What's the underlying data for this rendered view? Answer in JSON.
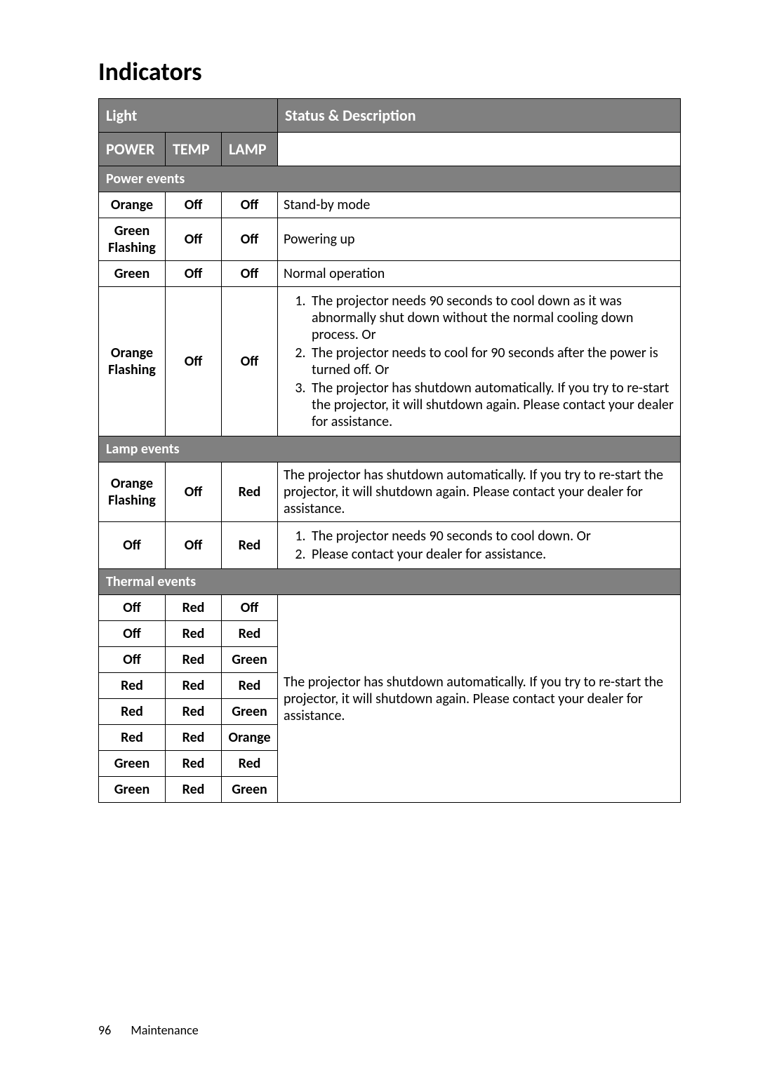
{
  "title": "Indicators",
  "columns": {
    "light": "Light",
    "status_desc": "Status & Description",
    "power": "POWER",
    "temp": "TEMP",
    "lamp": "LAMP"
  },
  "sections": {
    "power_events": "Power events",
    "lamp_events": "Lamp events",
    "thermal_events": "Thermal events"
  },
  "power_rows": [
    {
      "power": "Orange",
      "temp": "Off",
      "lamp": "Off",
      "desc": "Stand-by mode"
    },
    {
      "power": "Green Flashing",
      "temp": "Off",
      "lamp": "Off",
      "desc": "Powering up"
    },
    {
      "power": "Green",
      "temp": "Off",
      "lamp": "Off",
      "desc": "Normal operation"
    },
    {
      "power": "Orange Flashing",
      "temp": "Off",
      "lamp": "Off",
      "list": [
        "The projector needs 90 seconds to cool down as it was abnormally shut down without the normal cooling down process. Or",
        "The projector needs to cool for 90 seconds after the power is turned off. Or",
        "The projector has shutdown automatically. If you try to re-start the projector, it will shutdown again. Please contact your dealer for assistance."
      ]
    }
  ],
  "lamp_rows": [
    {
      "power": "Orange Flashing",
      "temp": "Off",
      "lamp": "Red",
      "desc": "The projector has shutdown automatically. If you try to re-start the projector, it will shutdown again. Please contact your dealer for assistance."
    },
    {
      "power": "Off",
      "temp": "Off",
      "lamp": "Red",
      "list": [
        "The projector needs 90 seconds to cool down. Or",
        "Please contact your dealer for assistance."
      ]
    }
  ],
  "thermal_rows": [
    {
      "power": "Off",
      "temp": "Red",
      "lamp": "Off"
    },
    {
      "power": "Off",
      "temp": "Red",
      "lamp": "Red"
    },
    {
      "power": "Off",
      "temp": "Red",
      "lamp": "Green"
    },
    {
      "power": "Red",
      "temp": "Red",
      "lamp": "Red"
    },
    {
      "power": "Red",
      "temp": "Red",
      "lamp": "Green"
    },
    {
      "power": "Red",
      "temp": "Red",
      "lamp": "Orange"
    },
    {
      "power": "Green",
      "temp": "Red",
      "lamp": "Red"
    },
    {
      "power": "Green",
      "temp": "Red",
      "lamp": "Green"
    }
  ],
  "thermal_desc": "The projector has shutdown automatically. If you try to re-start the projector, it will shutdown again. Please contact your dealer for assistance.",
  "footer": {
    "page_number": "96",
    "chapter": "Maintenance"
  },
  "colors": {
    "header_bg": "#808080",
    "header_fg": "#ffffff",
    "border": "#000000",
    "page_bg": "#ffffff"
  },
  "typography": {
    "title_fontsize": 36,
    "header_fontsize": 22,
    "cell_fontsize": 20,
    "footer_fontsize": 18
  }
}
